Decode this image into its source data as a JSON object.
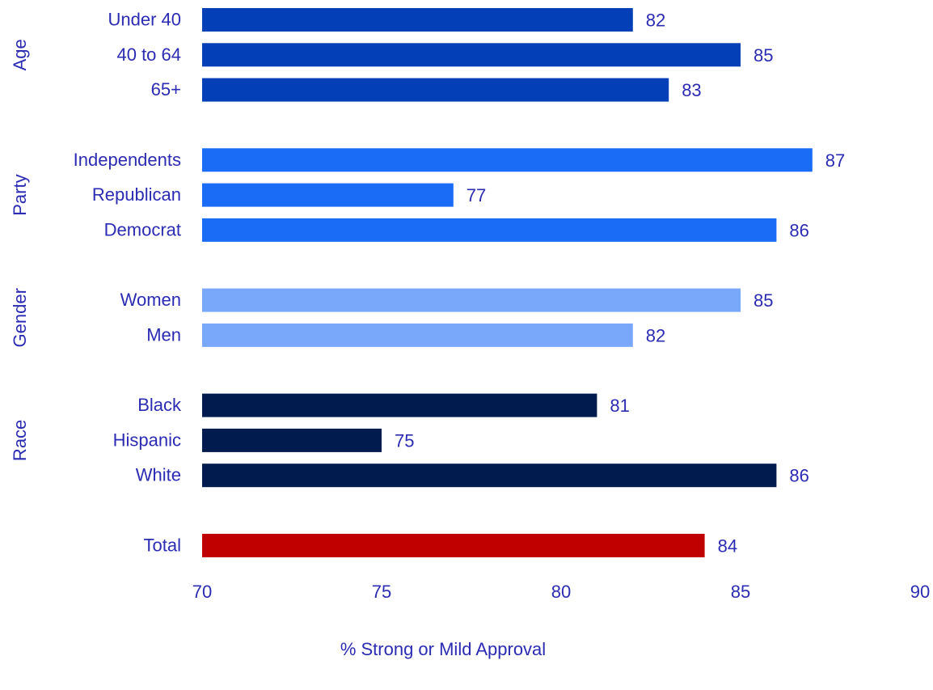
{
  "chart_data": {
    "type": "bar",
    "orientation": "horizontal",
    "xlabel": "% Strong or Mild Approval",
    "xlim": [
      70,
      90
    ],
    "xticks": [
      70,
      75,
      80,
      85,
      90
    ],
    "grid": false,
    "legend": "none",
    "text_color": "#2b2bb3",
    "groups": [
      {
        "name": "Age",
        "color": "#0340b8",
        "categories": [
          "Under 40",
          "40 to 64",
          "65+"
        ],
        "values": [
          82,
          85,
          83
        ]
      },
      {
        "name": "Party",
        "color": "#1a6cf6",
        "categories": [
          "Independents",
          "Republican",
          "Democrat"
        ],
        "values": [
          87,
          77,
          86
        ]
      },
      {
        "name": "Gender",
        "color": "#79a8fb",
        "categories": [
          "Women",
          "Men"
        ],
        "values": [
          85,
          82
        ]
      },
      {
        "name": "Race",
        "color": "#011b4e",
        "categories": [
          "Black",
          "Hispanic",
          "White"
        ],
        "values": [
          81,
          75,
          86
        ]
      },
      {
        "name": "",
        "color": "#c00000",
        "categories": [
          "Total"
        ],
        "values": [
          84
        ]
      }
    ]
  }
}
